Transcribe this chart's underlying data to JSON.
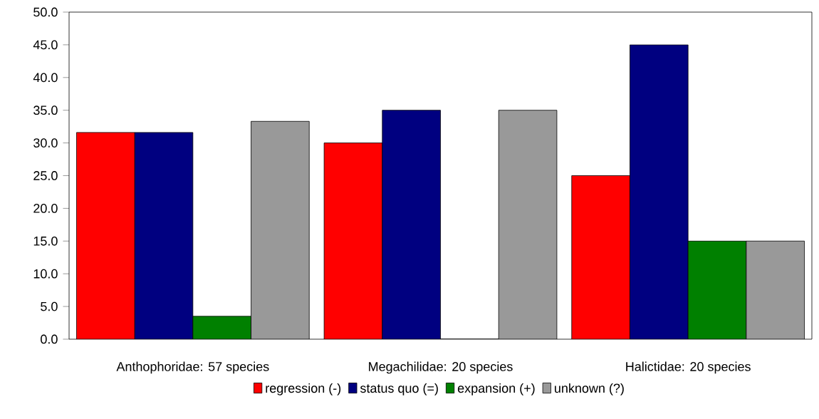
{
  "chart_data": {
    "type": "bar",
    "categories": [
      "Anthophoridae: 57 species",
      "Megachilidae: 20 species",
      "Halictidae: 20 species"
    ],
    "series": [
      {
        "name": "regression (-)",
        "color": "#ff0000",
        "values": [
          31.6,
          30.0,
          25.0
        ]
      },
      {
        "name": "status quo (=)",
        "color": "#000080",
        "values": [
          31.6,
          35.0,
          45.0
        ]
      },
      {
        "name": "expansion (+)",
        "color": "#008000",
        "values": [
          3.5,
          0.0,
          15.0
        ]
      },
      {
        "name": "unknown (?)",
        "color": "#999999",
        "values": [
          33.3,
          35.0,
          15.0
        ]
      }
    ],
    "ylim": [
      0,
      50
    ],
    "yticks": [
      {
        "value": 0,
        "label": "0.0"
      },
      {
        "value": 5,
        "label": "5.0"
      },
      {
        "value": 10,
        "label": "10.0"
      },
      {
        "value": 15,
        "label": "15.0"
      },
      {
        "value": 20,
        "label": "20.0"
      },
      {
        "value": 25,
        "label": "25.0"
      },
      {
        "value": 30,
        "label": "30.0"
      },
      {
        "value": 35,
        "label": "35.0"
      },
      {
        "value": 40,
        "label": "40.0"
      },
      {
        "value": 45,
        "label": "45.0"
      },
      {
        "value": 50,
        "label": "50.0"
      }
    ],
    "legend": "bottom"
  }
}
